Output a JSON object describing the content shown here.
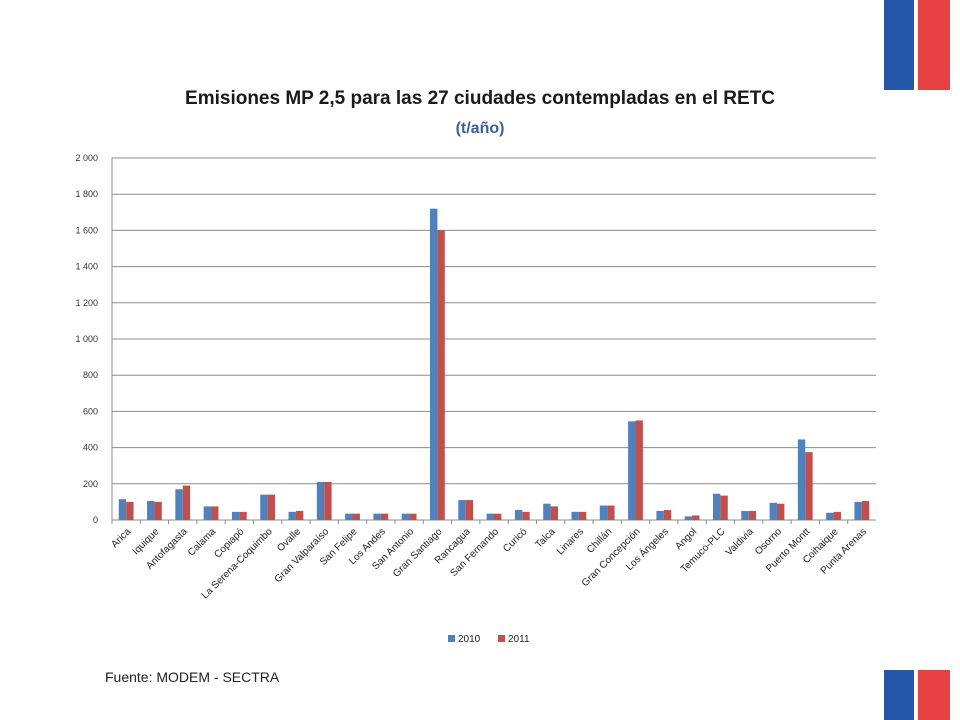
{
  "colors": {
    "flag_blue": "#2457a8",
    "flag_red": "#e84141",
    "bar_2010": "#4f81bd",
    "bar_2011": "#c0504d"
  },
  "source": "Fuente: MODEM - SECTRA",
  "chart_data": {
    "type": "bar",
    "title": "Emisiones MP 2,5 para las 27 ciudades contempladas en el RETC",
    "subtitle": "(t/año)",
    "xlabel": "",
    "ylabel": "",
    "ylim": [
      0,
      2000
    ],
    "yticks": [
      0,
      200,
      400,
      600,
      800,
      1000,
      1200,
      1400,
      1600,
      1800,
      2000
    ],
    "ytick_labels": [
      "0",
      "200",
      "400",
      "600",
      "800",
      "1 000",
      "1 200",
      "1 400",
      "1 600",
      "1 800",
      "2 000"
    ],
    "grid": true,
    "legend_position": "bottom",
    "categories": [
      "Arica",
      "Iquique",
      "Antofagasta",
      "Calama",
      "Copiapó",
      "La Serena-Coquimbo",
      "Ovalle",
      "Gran Valparaíso",
      "San Felipe",
      "Los Andes",
      "San Antonio",
      "Gran Santiago",
      "Rancagua",
      "San Fernando",
      "Curicó",
      "Talca",
      "Linares",
      "Chillán",
      "Gran Concepción",
      "Los Ángeles",
      "Angol",
      "Temuco-PLC",
      "Valdivia",
      "Osorno",
      "Puerto Montt",
      "Coihaique",
      "Punta Arenas"
    ],
    "series": [
      {
        "name": "2010",
        "values": [
          115,
          105,
          170,
          75,
          45,
          140,
          45,
          210,
          35,
          35,
          35,
          1720,
          110,
          35,
          55,
          90,
          45,
          80,
          545,
          50,
          20,
          145,
          50,
          95,
          445,
          40,
          100
        ]
      },
      {
        "name": "2011",
        "values": [
          100,
          100,
          190,
          75,
          45,
          140,
          50,
          210,
          35,
          35,
          35,
          1600,
          110,
          35,
          45,
          75,
          45,
          80,
          550,
          55,
          25,
          135,
          50,
          90,
          375,
          45,
          105
        ]
      }
    ]
  }
}
